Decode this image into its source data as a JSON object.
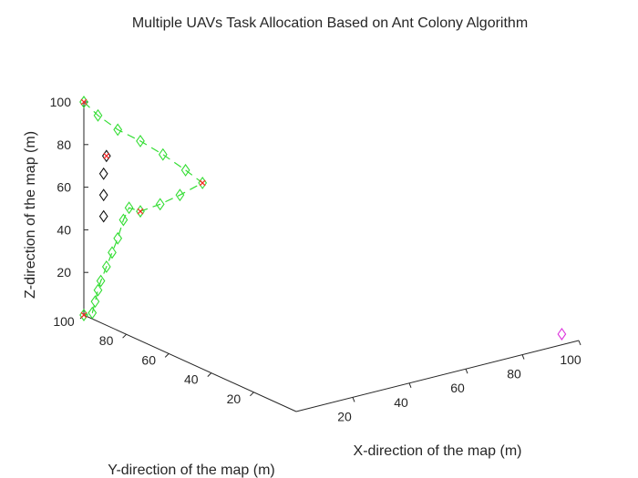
{
  "chart_data": {
    "type": "scatter",
    "projection": "3d",
    "title": "Multiple UAVs Task Allocation Based on Ant Colony Algorithm",
    "xlabel": "X-direction of the map (m)",
    "ylabel": "Y-direction of the map (m)",
    "zlabel": "Z-direction of the map (m)",
    "xlim": [
      0,
      100
    ],
    "ylim": [
      0,
      100
    ],
    "zlim": [
      0,
      100
    ],
    "x_ticks": [
      "20",
      "40",
      "60",
      "80",
      "100"
    ],
    "y_ticks": [
      "20",
      "40",
      "60",
      "80",
      "100"
    ],
    "z_ticks": [
      "20",
      "40",
      "60",
      "80",
      "100"
    ],
    "grid": false,
    "colors": {
      "route": "#33dd33",
      "route_marker": "#33ee33",
      "task": "#ff2222",
      "uav": "#111111",
      "base": "#dd33dd",
      "axis": "#262626"
    },
    "series": [
      {
        "marker": "diamond",
        "color": "#33dd33",
        "line": "dashed",
        "points": [
          [
            0,
            100,
            100
          ],
          [
            5,
            100,
            92
          ],
          [
            12,
            100,
            83
          ],
          [
            20,
            100,
            75
          ],
          [
            28,
            100,
            66
          ],
          [
            36,
            100,
            56
          ],
          [
            42,
            100,
            48
          ],
          [
            34,
            100,
            45
          ],
          [
            27,
            100,
            43
          ],
          [
            20,
            100,
            42
          ],
          [
            16,
            100,
            45
          ],
          [
            14,
            100,
            40
          ],
          [
            12,
            100,
            32
          ],
          [
            10,
            100,
            26
          ],
          [
            8,
            100,
            20
          ],
          [
            6,
            100,
            14
          ],
          [
            5,
            100,
            10
          ],
          [
            4,
            100,
            5
          ],
          [
            3,
            100,
            0
          ],
          [
            0,
            100,
            0
          ]
        ]
      },
      {
        "marker": "diamond",
        "color": "#111111",
        "points": [
          [
            8,
            100,
            72
          ],
          [
            7,
            100,
            64
          ],
          [
            7,
            100,
            54
          ],
          [
            7,
            100,
            44
          ]
        ]
      },
      {
        "marker": "diamond",
        "color": "#dd33dd",
        "points": [
          [
            94,
            0,
            5
          ]
        ]
      }
    ],
    "tasks": [
      [
        0,
        100,
        100
      ],
      [
        42,
        100,
        48
      ],
      [
        20,
        100,
        42
      ],
      [
        0,
        100,
        0
      ],
      [
        8,
        100,
        72
      ]
    ]
  }
}
